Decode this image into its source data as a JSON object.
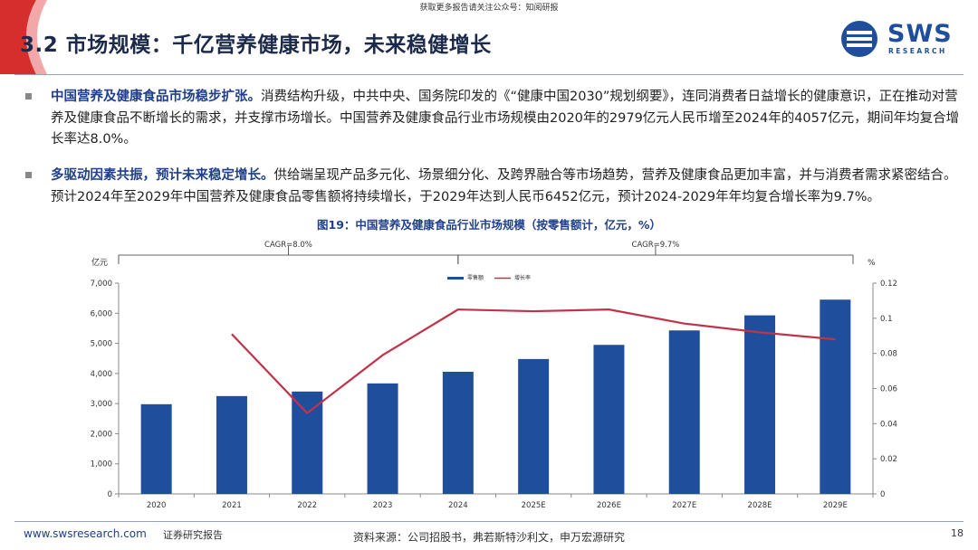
{
  "top_note": "获取更多报告请关注公众号：知阅研报",
  "slide": {
    "title": "3.2 市场规模：千亿营养健康市场，未来稳健增长",
    "logo_text": "SWS",
    "logo_sub": "RESEARCH"
  },
  "bullets": [
    {
      "bold": "中国营养及健康食品市场稳步扩张。",
      "text": "消费结构升级，中共中央、国务院印发的《“健康中国2030”规划纲要》，连同消费者日益增长的健康意识，正在推动对营养及健康食品不断增长的需求，并支撑市场增长。中国营养及健康食品行业市场规模由2020年的2979亿元人民币增至2024年的4057亿元，期间年均复合增长率达8.0%。"
    },
    {
      "bold": "多驱动因素共振，预计未来稳定增长。",
      "text": "供给端呈现产品多元化、场景细分化、及跨界融合等市场趋势，营养及健康食品更加丰富，并与消费者需求紧密结合。预计2024年至2029年中国营养及健康食品零售额将持续增长，于2029年达到人民币6452亿元，预计2024-2029年年均复合增长率为9.7%。"
    }
  ],
  "figure_title": "图19：中国营养及健康食品行业市场规模（按零售额计，亿元，%）",
  "chart_data": {
    "type": "bar",
    "categories": [
      "2020",
      "2021",
      "2022",
      "2023",
      "2024",
      "2025E",
      "2026E",
      "2027E",
      "2028E",
      "2029E"
    ],
    "series": [
      {
        "name": "零售额",
        "type": "bar",
        "axis": "left",
        "color": "#1f4e9c",
        "values": [
          2979,
          3250,
          3400,
          3670,
          4057,
          4480,
          4950,
          5430,
          5930,
          6452
        ]
      },
      {
        "name": "增长率",
        "type": "line",
        "axis": "right",
        "color": "#c0334a",
        "values": [
          null,
          0.091,
          0.046,
          0.079,
          0.105,
          0.104,
          0.105,
          0.097,
          0.092,
          0.088
        ]
      }
    ],
    "ylabel": "亿元",
    "ylabel_right": "%",
    "ylim": [
      0,
      7000
    ],
    "ylim_right": [
      0,
      0.12
    ],
    "yticks": [
      "0",
      "1,000",
      "2,000",
      "3,000",
      "4,000",
      "5,000",
      "6,000",
      "7,000"
    ],
    "yticks_right": [
      "0",
      "0.02",
      "0.04",
      "0.06",
      "0.08",
      "0.1",
      "0.12"
    ],
    "grid": false,
    "legend": "top-center",
    "annotations": [
      {
        "label": "CAGR=8.0%",
        "from": "2020",
        "to": "2024"
      },
      {
        "label": "CAGR=9.7%",
        "from": "2024",
        "to": "2029E"
      }
    ]
  },
  "footer": {
    "url": "www.swsresearch.com",
    "report_type": "证券研究报告",
    "source": "资料来源：公司招股书，弗若斯特沙利文，申万宏源研究",
    "page": "18"
  },
  "colors": {
    "accent": "#1f3f8a",
    "bar": "#1f4e9c",
    "line": "#c0334a",
    "deco": "#d62d2d"
  }
}
